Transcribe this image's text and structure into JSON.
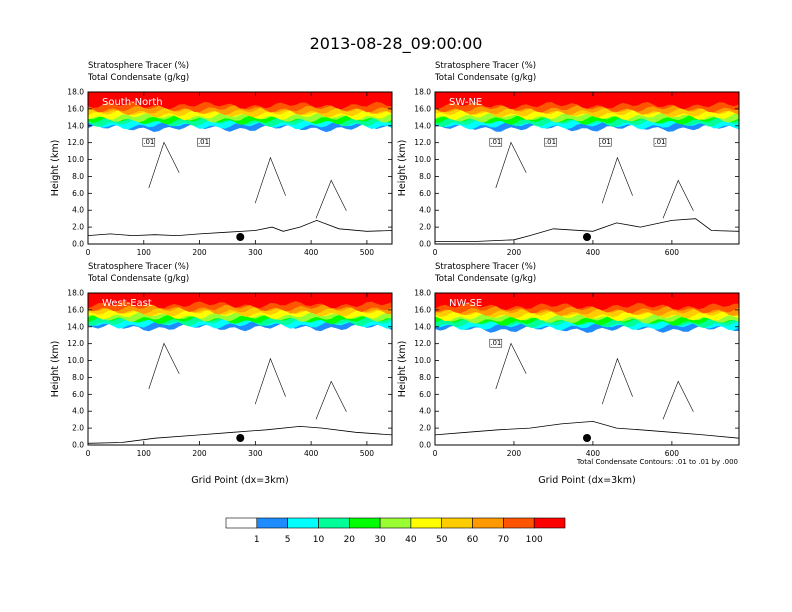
{
  "page": {
    "title": "2013-08-28_09:00:00",
    "footnote": "Total Condensate Contours: .01 to .01 by .000"
  },
  "colorbar": {
    "labels": [
      "1",
      "5",
      "10",
      "20",
      "30",
      "40",
      "50",
      "60",
      "70",
      "100"
    ],
    "colors": [
      "#ffffff",
      "#1e8cff",
      "#00ffff",
      "#00ff99",
      "#00ff00",
      "#99ff33",
      "#ffff00",
      "#ffcc00",
      "#ff9900",
      "#ff5500",
      "#ff0000"
    ]
  },
  "chart_data": [
    {
      "type": "heatmap",
      "panel": "South-North",
      "title_left_1": "Stratosphere Tracer   (%)",
      "title_left_2": "Total Condensate   (g/kg)",
      "ylabel": "Height (km)",
      "xlabel": "",
      "xlim": [
        0,
        545
      ],
      "ylim": [
        0,
        18
      ],
      "xticks": [
        0,
        100,
        200,
        300,
        400,
        500
      ],
      "yticks": [
        "0.0",
        "2.0",
        "4.0",
        "6.0",
        "8.0",
        "10.0",
        "12.0",
        "14.0",
        "16.0",
        "18.0"
      ],
      "tracer_base_km": 14.3,
      "terrain": [
        [
          0,
          1.0
        ],
        [
          40,
          1.2
        ],
        [
          80,
          1.0
        ],
        [
          120,
          1.1
        ],
        [
          160,
          1.0
        ],
        [
          200,
          1.2
        ],
        [
          250,
          1.4
        ],
        [
          300,
          1.6
        ],
        [
          330,
          2.0
        ],
        [
          350,
          1.5
        ],
        [
          380,
          2.0
        ],
        [
          410,
          2.8
        ],
        [
          450,
          1.8
        ],
        [
          500,
          1.5
        ],
        [
          545,
          1.6
        ]
      ],
      "marker_x": 273,
      "contour_labels": [
        ".01",
        ".01"
      ]
    },
    {
      "type": "heatmap",
      "panel": "SW-NE",
      "title_left_1": "Stratosphere Tracer   (%)",
      "title_left_2": "Total Condensate   (g/kg)",
      "ylabel": "Height (km)",
      "xlabel": "",
      "xlim": [
        0,
        770
      ],
      "ylim": [
        0,
        18
      ],
      "xticks": [
        0,
        200,
        400,
        600
      ],
      "yticks": [
        "0.0",
        "2.0",
        "4.0",
        "6.0",
        "8.0",
        "10.0",
        "12.0",
        "14.0",
        "16.0",
        "18.0"
      ],
      "tracer_base_km": 14.3,
      "terrain": [
        [
          0,
          0.3
        ],
        [
          100,
          0.3
        ],
        [
          200,
          0.5
        ],
        [
          240,
          1.0
        ],
        [
          300,
          1.8
        ],
        [
          400,
          1.5
        ],
        [
          460,
          2.5
        ],
        [
          520,
          2.0
        ],
        [
          600,
          2.8
        ],
        [
          660,
          3.0
        ],
        [
          700,
          1.6
        ],
        [
          770,
          1.5
        ]
      ],
      "marker_x": 385,
      "contour_labels": [
        ".01",
        ".01",
        ".01",
        ".01"
      ]
    },
    {
      "type": "heatmap",
      "panel": "West-East",
      "title_left_1": "Stratosphere Tracer   (%)",
      "title_left_2": "Total Condensate   (g/kg)",
      "ylabel": "Height (km)",
      "xlabel": "Grid Point (dx=3km)",
      "xlim": [
        0,
        545
      ],
      "ylim": [
        0,
        18
      ],
      "xticks": [
        0,
        100,
        200,
        300,
        400,
        500
      ],
      "yticks": [
        "0.0",
        "2.0",
        "4.0",
        "6.0",
        "8.0",
        "10.0",
        "12.0",
        "14.0",
        "16.0",
        "18.0"
      ],
      "tracer_base_km": 14.5,
      "terrain": [
        [
          0,
          0.2
        ],
        [
          60,
          0.3
        ],
        [
          120,
          0.8
        ],
        [
          200,
          1.2
        ],
        [
          260,
          1.5
        ],
        [
          320,
          1.8
        ],
        [
          380,
          2.2
        ],
        [
          420,
          2.0
        ],
        [
          480,
          1.5
        ],
        [
          545,
          1.2
        ]
      ],
      "marker_x": 273,
      "contour_labels": []
    },
    {
      "type": "heatmap",
      "panel": "NW-SE",
      "title_left_1": "Stratosphere Tracer   (%)",
      "title_left_2": "Total Condensate   (g/kg)",
      "ylabel": "Height (km)",
      "xlabel": "Grid Point (dx=3km)",
      "xlim": [
        0,
        770
      ],
      "ylim": [
        0,
        18
      ],
      "xticks": [
        0,
        200,
        400,
        600
      ],
      "yticks": [
        "0.0",
        "2.0",
        "4.0",
        "6.0",
        "8.0",
        "10.0",
        "12.0",
        "14.0",
        "16.0",
        "18.0"
      ],
      "tracer_base_km": 14.3,
      "terrain": [
        [
          0,
          1.2
        ],
        [
          80,
          1.5
        ],
        [
          160,
          1.8
        ],
        [
          240,
          2.0
        ],
        [
          320,
          2.5
        ],
        [
          400,
          2.8
        ],
        [
          460,
          2.0
        ],
        [
          520,
          1.8
        ],
        [
          600,
          1.5
        ],
        [
          680,
          1.2
        ],
        [
          770,
          0.8
        ]
      ],
      "marker_x": 385,
      "contour_labels": [
        ".01"
      ]
    }
  ]
}
